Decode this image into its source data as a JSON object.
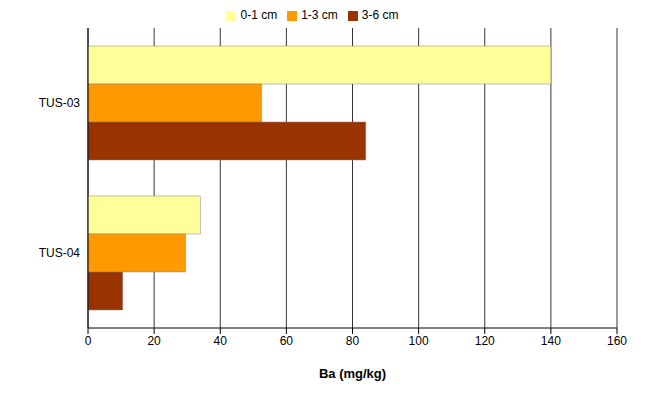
{
  "chart_data": {
    "type": "bar",
    "orientation": "horizontal",
    "categories": [
      "TUS-03",
      "TUS-04"
    ],
    "series": [
      {
        "name": "0-1 cm",
        "color": "#ffff99",
        "values": [
          140,
          34
        ]
      },
      {
        "name": "1-3 cm",
        "color": "#ff9900",
        "values": [
          52.5,
          29.5
        ]
      },
      {
        "name": "3-6 cm",
        "color": "#993300",
        "values": [
          84,
          10.5
        ]
      }
    ],
    "xlabel": "Ba (mg/kg)",
    "xlim": [
      0,
      160
    ],
    "xticks": [
      0,
      20,
      40,
      60,
      80,
      100,
      120,
      140,
      160
    ],
    "grid": true,
    "legend": "top"
  }
}
